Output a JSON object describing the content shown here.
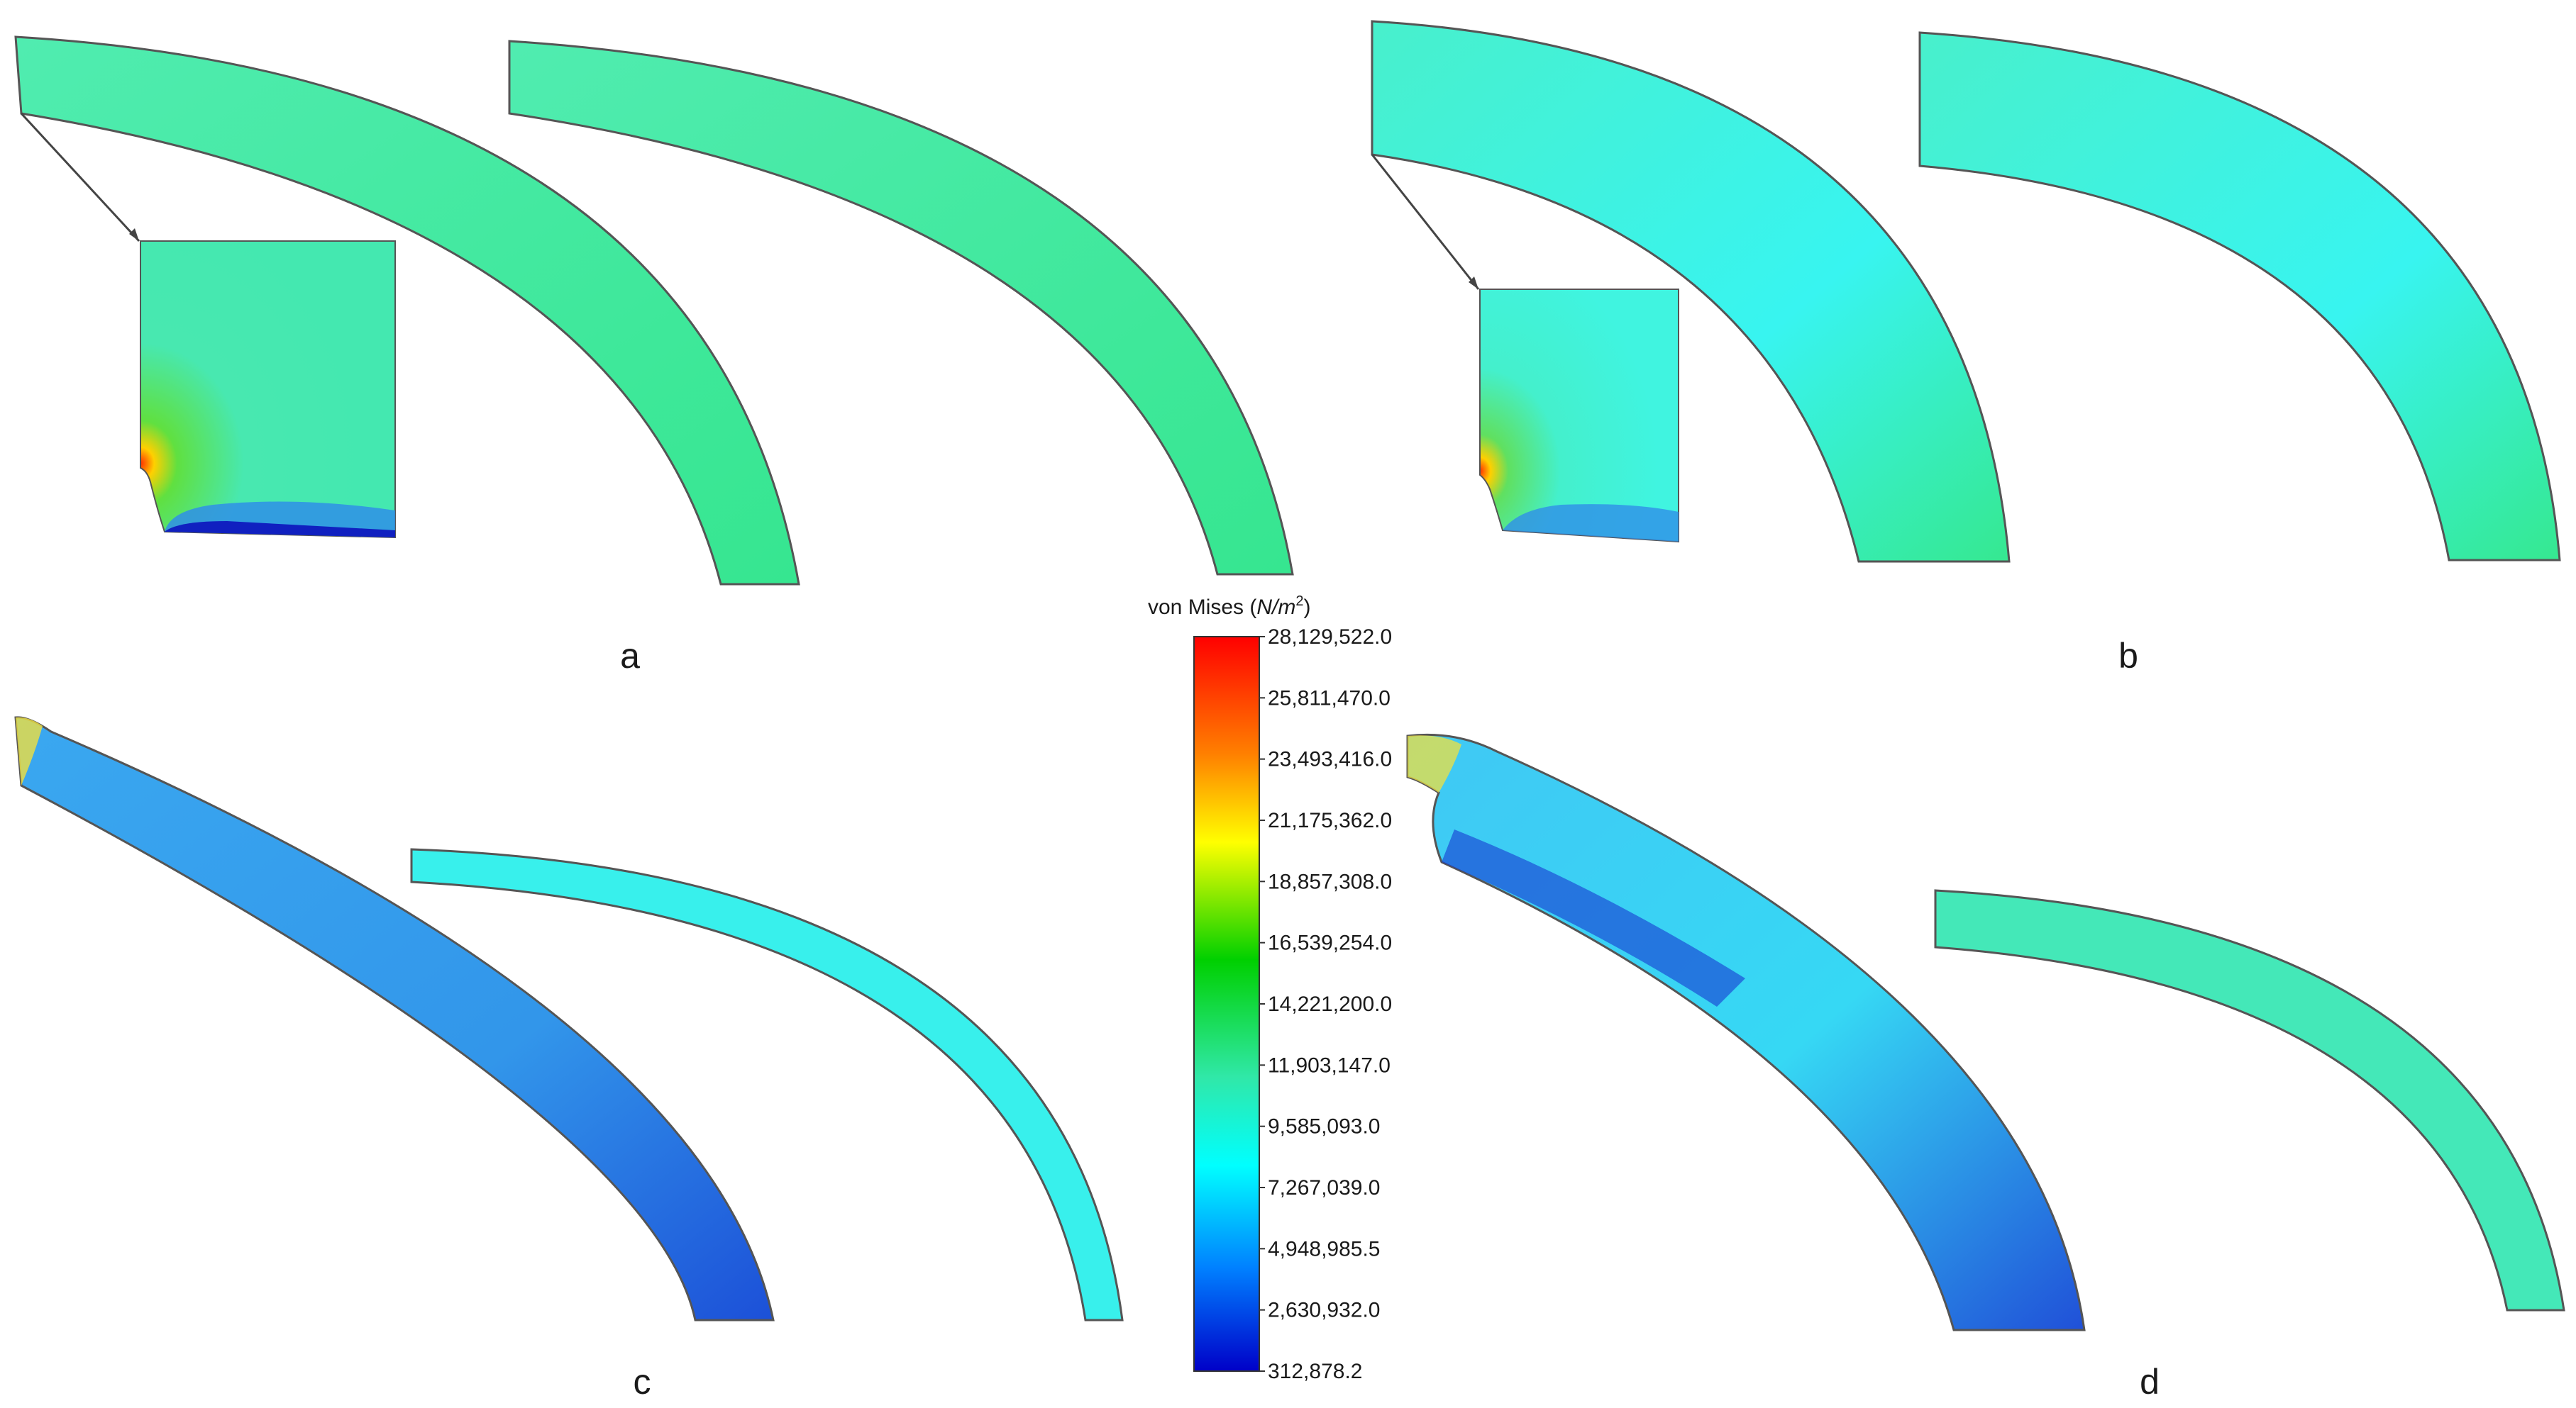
{
  "figure": {
    "panels": [
      {
        "id": "a",
        "label": "a"
      },
      {
        "id": "b",
        "label": "b"
      },
      {
        "id": "c",
        "label": "c"
      },
      {
        "id": "d",
        "label": "d"
      }
    ]
  },
  "colorbar": {
    "title_prefix": "von Mises (",
    "title_unit_base": "N/m",
    "title_unit_exponent": "2",
    "title_suffix": ")",
    "ticks": [
      "28,129,522.0",
      "25,811,470.0",
      "23,493,416.0",
      "21,175,362.0",
      "18,857,308.0",
      "16,539,254.0",
      "14,221,200.0",
      "11,903,147.0",
      "9,585,093.0",
      "7,267,039.0",
      "4,948,985.5",
      "2,630,932.0",
      "312,878.2"
    ],
    "colors": [
      "#ff0000",
      "#ff8000",
      "#ffff00",
      "#00d000",
      "#30e8a8",
      "#00ffff",
      "#0080ff",
      "#0000c8"
    ]
  },
  "colors": {
    "green_band": "#44e8a0",
    "teal_band": "#40f0d0",
    "cyan_band": "#38f4f0",
    "blue_band": "#2f8fe8",
    "deep_blue": "#1020c0",
    "hotspot": "#ff3000",
    "outline": "#555555"
  }
}
